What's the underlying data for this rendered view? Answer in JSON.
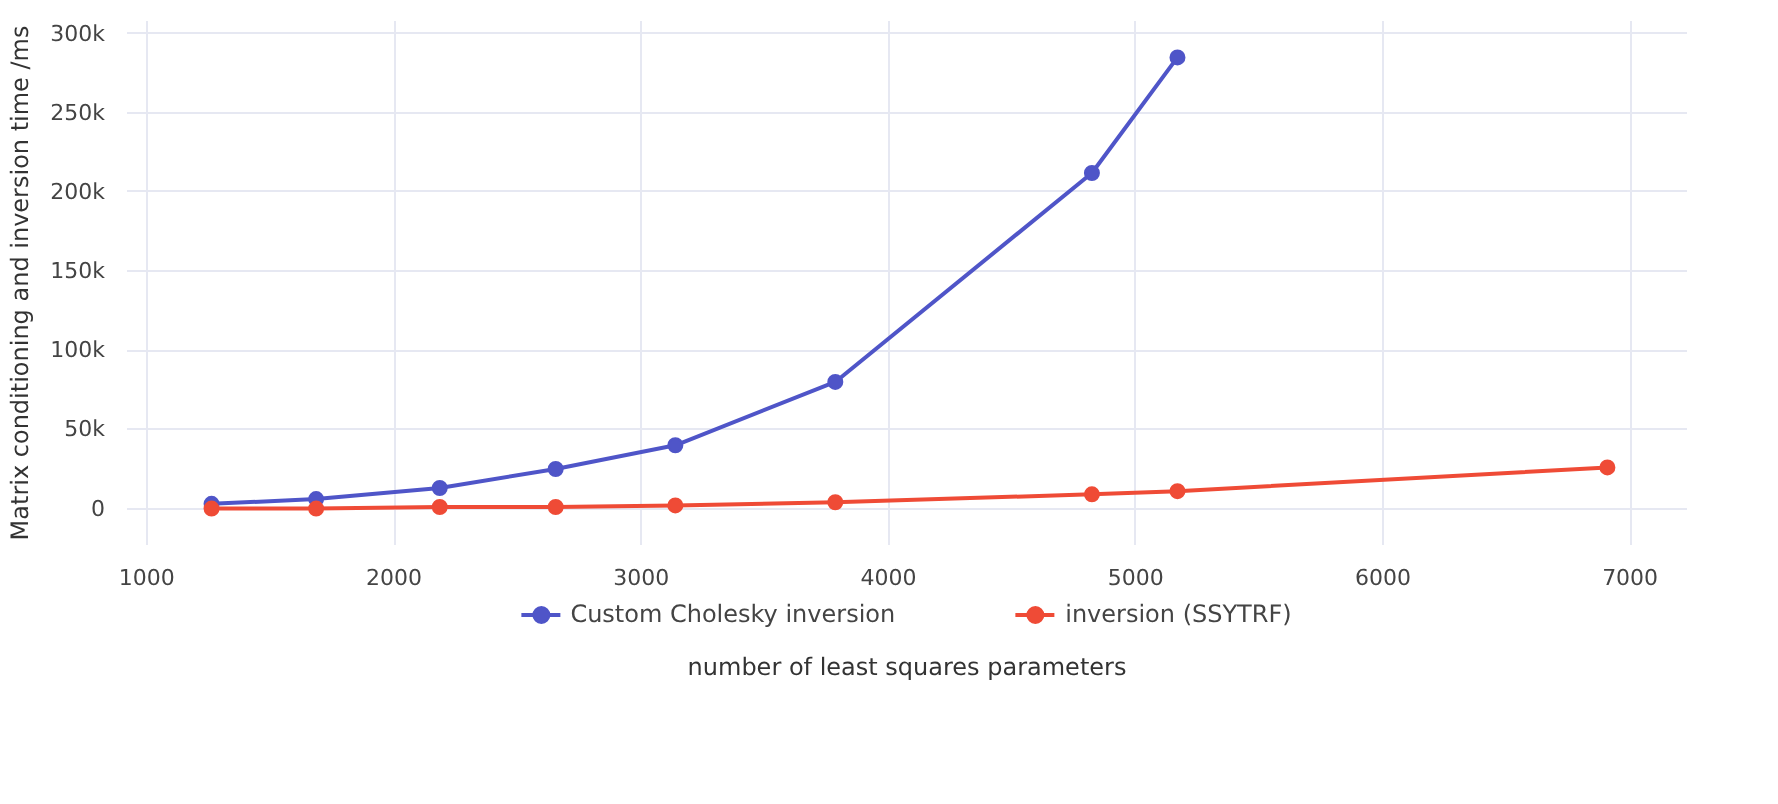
{
  "chart_data": {
    "type": "line",
    "xlabel": "number of least squares parameters",
    "ylabel": "Matrix conditioning and inversion time /ms",
    "xlim": [
      920,
      7230
    ],
    "ylim": [
      -23000,
      308000
    ],
    "xticks": [
      1000,
      2000,
      3000,
      4000,
      5000,
      6000,
      7000
    ],
    "yticks": [
      {
        "value": 0,
        "label": "0"
      },
      {
        "value": 50000,
        "label": "50k"
      },
      {
        "value": 100000,
        "label": "100k"
      },
      {
        "value": 150000,
        "label": "150k"
      },
      {
        "value": 200000,
        "label": "200k"
      },
      {
        "value": 250000,
        "label": "250k"
      },
      {
        "value": 300000,
        "label": "300k"
      }
    ],
    "grid": true,
    "legend": "bottom",
    "marker": "circle",
    "line_style": "solid",
    "series": [
      {
        "name": "Custom Cholesky inversion",
        "color": "#4f55c8",
        "x": [
          1262,
          1685,
          2185,
          2654,
          3138,
          3785,
          4823,
          5169
        ],
        "values": [
          3000,
          6000,
          13000,
          25000,
          40000,
          80000,
          212000,
          285000
        ]
      },
      {
        "name": "inversion (SSYTRF)",
        "color": "#ef4b36",
        "x": [
          1262,
          1685,
          2185,
          2654,
          3138,
          3785,
          4823,
          5169,
          6908
        ],
        "values": [
          0,
          0,
          1000,
          1000,
          2000,
          4000,
          9000,
          11000,
          26000
        ]
      }
    ]
  }
}
